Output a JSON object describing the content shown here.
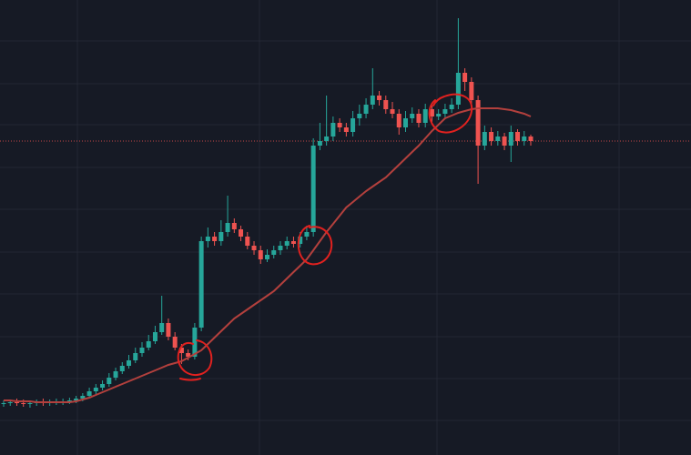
{
  "chart_data": {
    "type": "candlestick",
    "ylim": [
      0,
      500
    ],
    "up_color": "#26a69a",
    "down_color": "#ef5350",
    "open": [
      56,
      57,
      58,
      57,
      56,
      57,
      58,
      57,
      58,
      58,
      59,
      60,
      62,
      65,
      70,
      74,
      78,
      85,
      92,
      98,
      104,
      112,
      118,
      125,
      135,
      145,
      130,
      118,
      112,
      108,
      140,
      235,
      240,
      235,
      245,
      255,
      248,
      240,
      230,
      225,
      215,
      220,
      225,
      230,
      235,
      232,
      240,
      245,
      340,
      345,
      350,
      365,
      360,
      355,
      370,
      375,
      385,
      395,
      390,
      380,
      375,
      360,
      370,
      375,
      365,
      380,
      372,
      375,
      380,
      385,
      420,
      410,
      390,
      340,
      355,
      345,
      350,
      340,
      355,
      345,
      350
    ],
    "high": [
      60,
      61,
      62,
      61,
      60,
      61,
      62,
      61,
      62,
      62,
      63,
      65,
      68,
      74,
      78,
      82,
      90,
      96,
      102,
      110,
      118,
      124,
      132,
      142,
      175,
      150,
      135,
      122,
      116,
      145,
      240,
      250,
      245,
      258,
      285,
      260,
      252,
      245,
      235,
      230,
      226,
      230,
      235,
      240,
      240,
      245,
      252,
      348,
      365,
      395,
      372,
      370,
      365,
      378,
      385,
      392,
      425,
      400,
      395,
      388,
      380,
      378,
      382,
      380,
      386,
      384,
      380,
      386,
      392,
      480,
      425,
      415,
      395,
      362,
      360,
      356,
      354,
      362,
      358,
      356,
      352
    ],
    "low": [
      53,
      54,
      54,
      53,
      52,
      54,
      54,
      54,
      55,
      55,
      56,
      57,
      59,
      62,
      67,
      71,
      75,
      82,
      89,
      95,
      101,
      108,
      115,
      122,
      132,
      126,
      115,
      100,
      104,
      105,
      136,
      228,
      230,
      230,
      240,
      244,
      235,
      226,
      220,
      210,
      212,
      216,
      220,
      226,
      228,
      228,
      236,
      240,
      335,
      340,
      345,
      355,
      350,
      350,
      362,
      370,
      380,
      384,
      375,
      370,
      352,
      355,
      365,
      360,
      360,
      366,
      368,
      370,
      376,
      380,
      400,
      385,
      298,
      335,
      340,
      340,
      335,
      322,
      340,
      340,
      340
    ],
    "close": [
      57,
      58,
      57,
      56,
      57,
      58,
      57,
      58,
      58,
      59,
      60,
      62,
      65,
      70,
      74,
      78,
      85,
      92,
      98,
      104,
      112,
      118,
      125,
      135,
      145,
      130,
      118,
      112,
      108,
      140,
      235,
      240,
      235,
      245,
      255,
      248,
      240,
      230,
      225,
      215,
      220,
      225,
      230,
      235,
      232,
      240,
      245,
      340,
      345,
      350,
      365,
      360,
      355,
      370,
      375,
      385,
      395,
      390,
      380,
      375,
      360,
      370,
      375,
      365,
      380,
      372,
      375,
      380,
      385,
      420,
      410,
      390,
      340,
      355,
      345,
      350,
      340,
      355,
      345,
      350,
      345
    ],
    "moving_average": {
      "color": "#b3403d",
      "values": [
        60,
        60,
        59,
        59,
        59,
        58,
        58,
        58,
        58,
        58,
        58,
        59,
        61,
        63,
        66,
        69,
        72,
        75,
        78,
        81,
        84,
        87,
        90,
        93,
        96,
        99,
        101,
        103,
        107,
        111,
        115,
        122,
        129,
        136,
        143,
        150,
        155,
        160,
        165,
        170,
        175,
        180,
        187,
        194,
        201,
        208,
        215,
        225,
        235,
        245,
        254,
        263,
        272,
        278,
        284,
        290,
        295,
        300,
        305,
        312,
        319,
        326,
        333,
        340,
        348,
        356,
        363,
        370,
        373,
        376,
        378,
        380,
        381,
        381,
        381,
        381,
        380,
        379,
        377,
        375,
        372
      ]
    },
    "last_price": 345,
    "grid": true
  }
}
